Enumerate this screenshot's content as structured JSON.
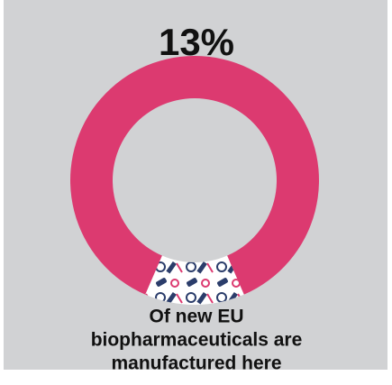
{
  "chart_data": {
    "type": "donut",
    "categories": [
      null,
      null
    ],
    "values": [
      13,
      87
    ],
    "value_labels": [
      "13%",
      null
    ],
    "colors": [
      "#ffffff",
      "#dc3a70"
    ],
    "caption_lines": [
      "Of new EU",
      "biopharmaceuticals are",
      "manufactured here"
    ]
  }
}
